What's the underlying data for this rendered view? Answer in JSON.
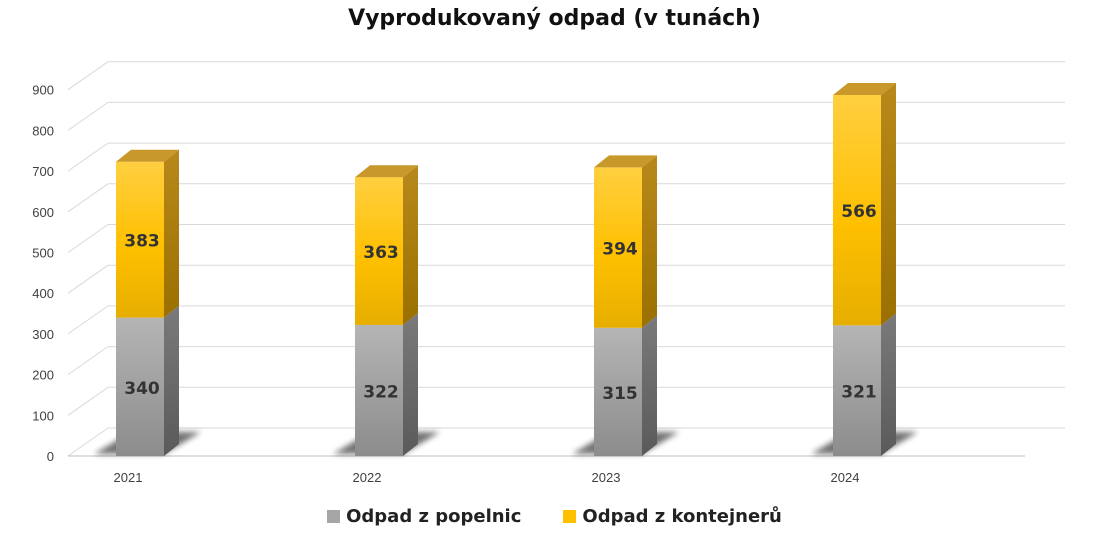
{
  "chart_data": {
    "type": "bar",
    "stacked": true,
    "title": "Vyprodukovaný odpad (v tunách)",
    "categories": [
      "2021",
      "2022",
      "2023",
      "2024"
    ],
    "series": [
      {
        "name": "Odpad z popelnic",
        "values": [
          340,
          322,
          315,
          321
        ],
        "color": "#a6a6a6"
      },
      {
        "name": "Odpad z kontejnerů",
        "values": [
          383,
          363,
          394,
          566
        ],
        "color": "#ffc000"
      }
    ],
    "ylim": [
      0,
      900
    ],
    "yticks": [
      0,
      100,
      200,
      300,
      400,
      500,
      600,
      700,
      800,
      900
    ],
    "grid": true,
    "legend": "bottom",
    "style": "3d-columns"
  }
}
